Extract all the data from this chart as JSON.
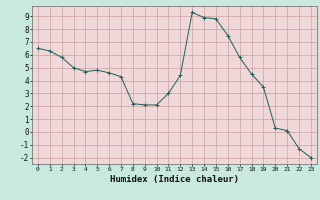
{
  "x": [
    0,
    1,
    2,
    3,
    4,
    5,
    6,
    7,
    8,
    9,
    10,
    11,
    12,
    13,
    14,
    15,
    16,
    17,
    18,
    19,
    20,
    21,
    22,
    23
  ],
  "y": [
    6.5,
    6.3,
    5.8,
    5.0,
    4.7,
    4.8,
    4.6,
    4.3,
    2.2,
    2.1,
    2.1,
    3.0,
    4.4,
    9.3,
    8.9,
    8.8,
    7.5,
    5.8,
    4.5,
    3.5,
    0.3,
    0.1,
    -1.3,
    -2.0
  ],
  "xlim": [
    -0.5,
    23.5
  ],
  "ylim": [
    -2.5,
    9.8
  ],
  "yticks": [
    -2,
    -1,
    0,
    1,
    2,
    3,
    4,
    5,
    6,
    7,
    8,
    9
  ],
  "xticks": [
    0,
    1,
    2,
    3,
    4,
    5,
    6,
    7,
    8,
    9,
    10,
    11,
    12,
    13,
    14,
    15,
    16,
    17,
    18,
    19,
    20,
    21,
    22,
    23
  ],
  "xlabel": "Humidex (Indice chaleur)",
  "line_color": "#1a5f5a",
  "marker_color": "#1a5f5a",
  "bg_color": "#c8e8e0",
  "plot_bg_color": "#f0d8d8",
  "grid_color": "#c8a0a0",
  "outer_bg": "#c8e8e0"
}
